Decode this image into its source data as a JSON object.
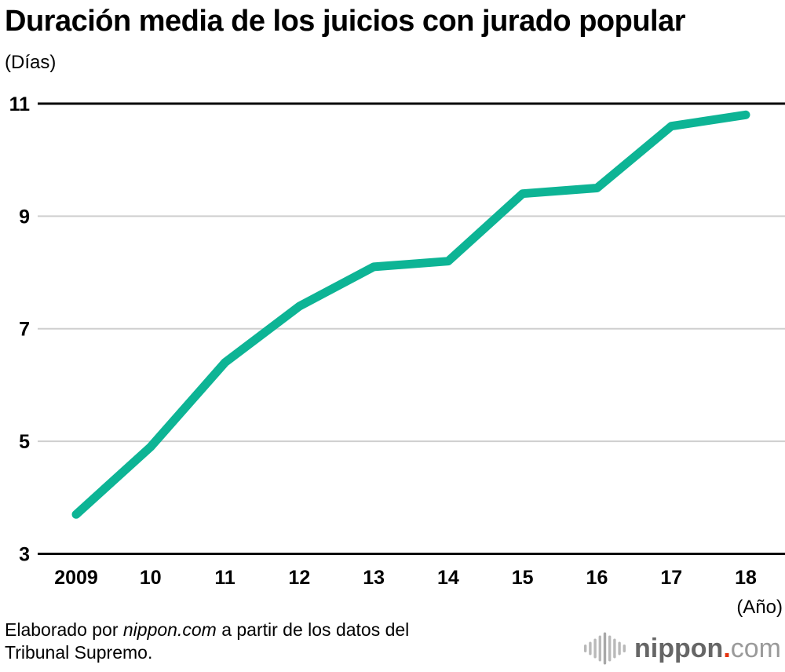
{
  "chart_data": {
    "type": "line",
    "title": "Duración media de los juicios con jurado popular",
    "y_unit_label": "(Días)",
    "x_unit_label": "(Año)",
    "categories": [
      "2009",
      "10",
      "11",
      "12",
      "13",
      "14",
      "15",
      "16",
      "17",
      "18"
    ],
    "values": [
      3.7,
      4.9,
      6.4,
      7.4,
      8.1,
      8.2,
      9.4,
      9.5,
      10.6,
      10.8
    ],
    "yticks": [
      3,
      5,
      7,
      9,
      11
    ],
    "ylim": [
      3,
      11
    ],
    "grid": true,
    "legend": "none",
    "line_color": "#0db495",
    "grid_color": "#cfcfcf",
    "axis_color": "#000000"
  },
  "footer": {
    "source_prefix": "Elaborado por ",
    "source_brand": "nippon.com",
    "source_suffix": " a partir de los datos del",
    "source_line2": "Tribunal Supremo."
  },
  "logo": {
    "name": "nippon",
    "dot": ".",
    "tld": "com"
  }
}
